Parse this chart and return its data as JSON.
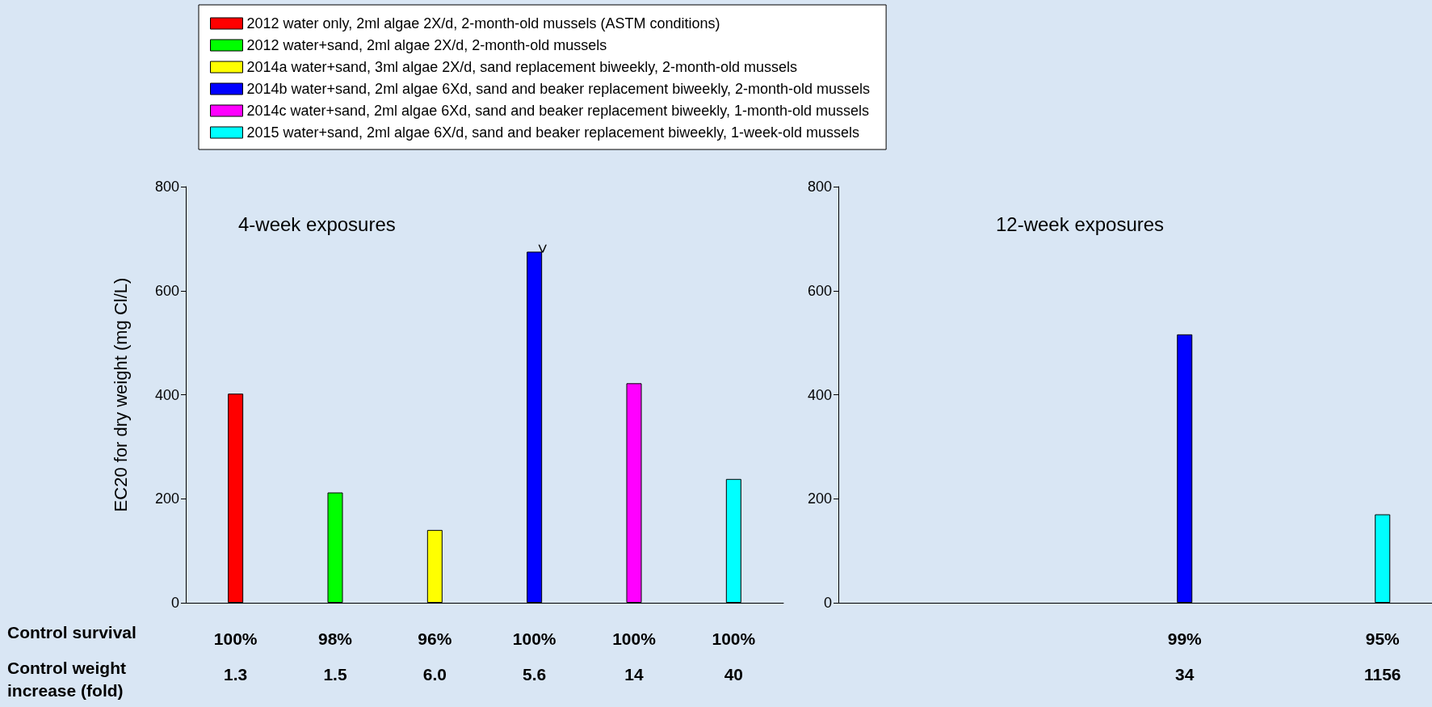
{
  "chart_data": [
    {
      "type": "bar",
      "title": "4-week exposures",
      "ylabel": "EC20 for dry weight (mg Cl/L)",
      "stacked": true,
      "legend": "top",
      "grid": false,
      "categories": [
        "100%\n1.3",
        "98%\n1.5",
        "96%\n6.0",
        "100%\n5.6",
        "100%\n14",
        "100%\n40"
      ],
      "ylim": [
        0,
        800
      ],
      "yticks": [
        0,
        200,
        400,
        600,
        800
      ],
      "annotations": [
        "Control survival",
        "Control weight\nincrease (fold)"
      ],
      "series": [
        {
          "name": "2012 water only, 2ml algae 2X/d, 2-month-old mussels (ASTM conditions)",
          "color": "#ff0000",
          "values": [
            402,
            null,
            null,
            null,
            null,
            null
          ]
        },
        {
          "name": "2012 water+sand, 2ml algae 2X/d, 2-month-old mussels",
          "color": "#00ff00",
          "values": [
            null,
            212,
            null,
            null,
            null,
            null
          ]
        },
        {
          "name": "2014a water+sand, 3ml algae 2X/d, sand replacement biweekly, 2-month-old mussels",
          "color": "#ffff00",
          "values": [
            null,
            null,
            140,
            null,
            null,
            null
          ]
        },
        {
          "name": "2014b water+sand, 2ml algae 6Xd, sand and beaker replacement biweekly, 2-month-old mussels",
          "color": "#0000ff",
          "values": [
            null,
            null,
            null,
            675,
            null,
            null
          ],
          "value_labels": [
            null,
            null,
            null,
            ">",
            null,
            null
          ]
        },
        {
          "name": "2014c water+sand, 2ml algae 6Xd, sand and beaker replacement biweekly, 1-month-old mussels",
          "color": "#ff00ff",
          "values": [
            null,
            null,
            null,
            null,
            422,
            null
          ]
        },
        {
          "name": "2015 water+sand, 2ml algae 6X/d, sand and beaker replacement biweekly, 1-week-old mussels",
          "color": "#00ffff",
          "values": [
            null,
            null,
            null,
            null,
            null,
            238
          ]
        }
      ]
    },
    {
      "type": "bar",
      "title": "12-week exposures",
      "stacked": true,
      "grid": false,
      "categories": [
        null,
        null,
        null,
        "99%\n34",
        null,
        "95%\n1156"
      ],
      "ylim": [
        0,
        800
      ],
      "yticks": [
        0,
        200,
        400,
        600,
        800
      ],
      "series": [
        {
          "color": "#0000ff",
          "values": [
            null,
            null,
            null,
            516,
            null,
            null
          ]
        },
        {
          "color": "#00ffff",
          "values": [
            null,
            null,
            null,
            null,
            null,
            170
          ]
        }
      ]
    }
  ]
}
